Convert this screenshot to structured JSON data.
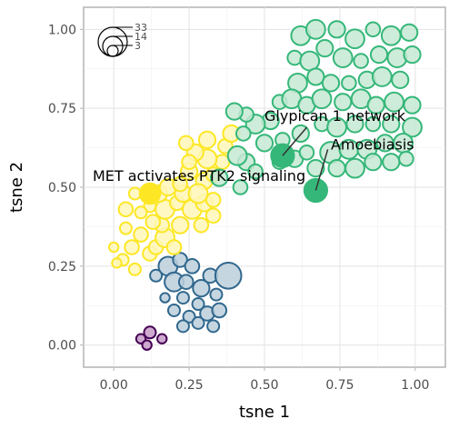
{
  "chart_data": {
    "type": "scatter",
    "xlabel": "tsne 1",
    "ylabel": "tsne 2",
    "xlim": [
      -0.1,
      1.1
    ],
    "ylim": [
      -0.07,
      1.07
    ],
    "xticks": [
      "0.00",
      "0.25",
      "0.50",
      "0.75",
      "1.00"
    ],
    "yticks": [
      "0.00",
      "0.25",
      "0.50",
      "0.75",
      "1.00"
    ],
    "xtick_values": [
      0,
      0.25,
      0.5,
      0.75,
      1.0
    ],
    "ytick_values": [
      0,
      0.25,
      0.5,
      0.75,
      1.0
    ],
    "grid": true,
    "size_legend": {
      "placement": "top-left",
      "entries": [
        {
          "label": "33",
          "value": 33
        },
        {
          "label": "14",
          "value": 14
        },
        {
          "label": "3",
          "value": 3
        }
      ]
    },
    "clusters": [
      {
        "color": "#440154",
        "fill": "#c59ac8",
        "points": [
          [
            0.09,
            0.02,
            4
          ],
          [
            0.12,
            0.04,
            5
          ],
          [
            0.16,
            0.02,
            4
          ],
          [
            0.11,
            0.0,
            4
          ]
        ]
      },
      {
        "color": "#31688e",
        "fill": "#bccfdc",
        "points": [
          [
            0.14,
            0.22,
            5
          ],
          [
            0.18,
            0.25,
            8
          ],
          [
            0.22,
            0.27,
            6
          ],
          [
            0.26,
            0.25,
            6
          ],
          [
            0.2,
            0.2,
            8
          ],
          [
            0.24,
            0.2,
            6
          ],
          [
            0.29,
            0.18,
            7
          ],
          [
            0.32,
            0.22,
            6
          ],
          [
            0.34,
            0.16,
            5
          ],
          [
            0.28,
            0.13,
            5
          ],
          [
            0.23,
            0.15,
            5
          ],
          [
            0.17,
            0.15,
            4
          ],
          [
            0.25,
            0.09,
            5
          ],
          [
            0.2,
            0.11,
            5
          ],
          [
            0.31,
            0.1,
            6
          ],
          [
            0.38,
            0.22,
            11
          ],
          [
            0.35,
            0.11,
            6
          ],
          [
            0.23,
            0.06,
            5
          ],
          [
            0.28,
            0.07,
            5
          ],
          [
            0.33,
            0.06,
            5
          ]
        ]
      },
      {
        "color": "#fde725",
        "fill": "#fff7b8",
        "points": [
          [
            0.0,
            0.31,
            4
          ],
          [
            0.03,
            0.27,
            5
          ],
          [
            0.06,
            0.31,
            6
          ],
          [
            0.01,
            0.26,
            4
          ],
          [
            0.07,
            0.24,
            5
          ],
          [
            0.12,
            0.29,
            6
          ],
          [
            0.09,
            0.35,
            6
          ],
          [
            0.04,
            0.37,
            5
          ],
          [
            0.14,
            0.31,
            6
          ],
          [
            0.17,
            0.34,
            8
          ],
          [
            0.2,
            0.31,
            6
          ],
          [
            0.16,
            0.38,
            6
          ],
          [
            0.13,
            0.39,
            6
          ],
          [
            0.12,
            0.44,
            5
          ],
          [
            0.09,
            0.42,
            5
          ],
          [
            0.04,
            0.43,
            6
          ],
          [
            0.07,
            0.48,
            5
          ],
          [
            0.17,
            0.43,
            8
          ],
          [
            0.21,
            0.45,
            6
          ],
          [
            0.23,
            0.48,
            7
          ],
          [
            0.26,
            0.43,
            8
          ],
          [
            0.3,
            0.45,
            7
          ],
          [
            0.33,
            0.41,
            6
          ],
          [
            0.29,
            0.38,
            6
          ],
          [
            0.22,
            0.38,
            7
          ],
          [
            0.15,
            0.48,
            7
          ],
          [
            0.18,
            0.5,
            7
          ],
          [
            0.22,
            0.51,
            6
          ],
          [
            0.25,
            0.55,
            7
          ],
          [
            0.3,
            0.52,
            7
          ],
          [
            0.33,
            0.46,
            6
          ],
          [
            0.28,
            0.48,
            8
          ],
          [
            0.33,
            0.54,
            6
          ],
          [
            0.36,
            0.58,
            6
          ],
          [
            0.31,
            0.59,
            8
          ],
          [
            0.27,
            0.61,
            7
          ],
          [
            0.25,
            0.58,
            6
          ],
          [
            0.37,
            0.63,
            6
          ],
          [
            0.39,
            0.67,
            7
          ],
          [
            0.31,
            0.65,
            7
          ],
          [
            0.24,
            0.64,
            6
          ],
          [
            0.12,
            0.48,
            5
          ]
        ]
      },
      {
        "color": "#35b779",
        "fill": "#c6e9d4",
        "points": [
          [
            0.62,
            0.98,
            8
          ],
          [
            0.67,
            1.0,
            8
          ],
          [
            0.74,
            1.0,
            7
          ],
          [
            0.8,
            0.97,
            8
          ],
          [
            0.86,
            1.0,
            6
          ],
          [
            0.92,
            0.98,
            8
          ],
          [
            0.98,
            0.99,
            7
          ],
          [
            0.6,
            0.91,
            6
          ],
          [
            0.65,
            0.9,
            8
          ],
          [
            0.7,
            0.94,
            7
          ],
          [
            0.76,
            0.91,
            8
          ],
          [
            0.82,
            0.9,
            6
          ],
          [
            0.88,
            0.92,
            7
          ],
          [
            0.94,
            0.91,
            8
          ],
          [
            0.99,
            0.92,
            7
          ],
          [
            0.61,
            0.83,
            8
          ],
          [
            0.67,
            0.85,
            7
          ],
          [
            0.72,
            0.83,
            7
          ],
          [
            0.78,
            0.83,
            6
          ],
          [
            0.84,
            0.84,
            7
          ],
          [
            0.89,
            0.85,
            8
          ],
          [
            0.95,
            0.84,
            7
          ],
          [
            0.55,
            0.77,
            6
          ],
          [
            0.59,
            0.78,
            8
          ],
          [
            0.64,
            0.76,
            7
          ],
          [
            0.69,
            0.78,
            8
          ],
          [
            0.76,
            0.77,
            7
          ],
          [
            0.82,
            0.78,
            8
          ],
          [
            0.87,
            0.76,
            7
          ],
          [
            0.93,
            0.77,
            8
          ],
          [
            0.99,
            0.76,
            7
          ],
          [
            0.52,
            0.71,
            7
          ],
          [
            0.47,
            0.7,
            8
          ],
          [
            0.44,
            0.73,
            6
          ],
          [
            0.4,
            0.74,
            7
          ],
          [
            0.43,
            0.67,
            6
          ],
          [
            0.5,
            0.64,
            7
          ],
          [
            0.56,
            0.65,
            6
          ],
          [
            0.62,
            0.67,
            7
          ],
          [
            0.69,
            0.7,
            6
          ],
          [
            0.74,
            0.69,
            8
          ],
          [
            0.8,
            0.7,
            7
          ],
          [
            0.86,
            0.7,
            6
          ],
          [
            0.92,
            0.7,
            7
          ],
          [
            0.99,
            0.69,
            8
          ],
          [
            0.6,
            0.59,
            7
          ],
          [
            0.64,
            0.61,
            6
          ],
          [
            0.72,
            0.61,
            9
          ],
          [
            0.78,
            0.62,
            8
          ],
          [
            0.84,
            0.62,
            8
          ],
          [
            0.9,
            0.64,
            7
          ],
          [
            0.96,
            0.64,
            8
          ],
          [
            0.74,
            0.56,
            7
          ],
          [
            0.8,
            0.56,
            8
          ],
          [
            0.86,
            0.58,
            7
          ],
          [
            0.92,
            0.58,
            7
          ],
          [
            0.97,
            0.59,
            6
          ],
          [
            0.44,
            0.58,
            7
          ],
          [
            0.42,
            0.5,
            6
          ],
          [
            0.47,
            0.55,
            6
          ],
          [
            0.55,
            0.58,
            6
          ],
          [
            0.67,
            0.56,
            7
          ],
          [
            0.35,
            0.53,
            7
          ],
          [
            0.41,
            0.6,
            8
          ]
        ]
      }
    ],
    "highlights": [
      {
        "label": "Glypican 1 network",
        "x": 0.56,
        "y": 0.6,
        "r": 9,
        "color": "#35b779",
        "label_x": 0.5,
        "label_y": 0.71
      },
      {
        "label": "Amoebiasis",
        "x": 0.67,
        "y": 0.49,
        "r": 9,
        "color": "#35b779",
        "label_x": 0.72,
        "label_y": 0.62
      },
      {
        "label": "MET activates PTK2 signaling",
        "x": 0.12,
        "y": 0.48,
        "r": 8,
        "color": "#fde725",
        "label_x": -0.07,
        "label_y": 0.52
      }
    ]
  }
}
